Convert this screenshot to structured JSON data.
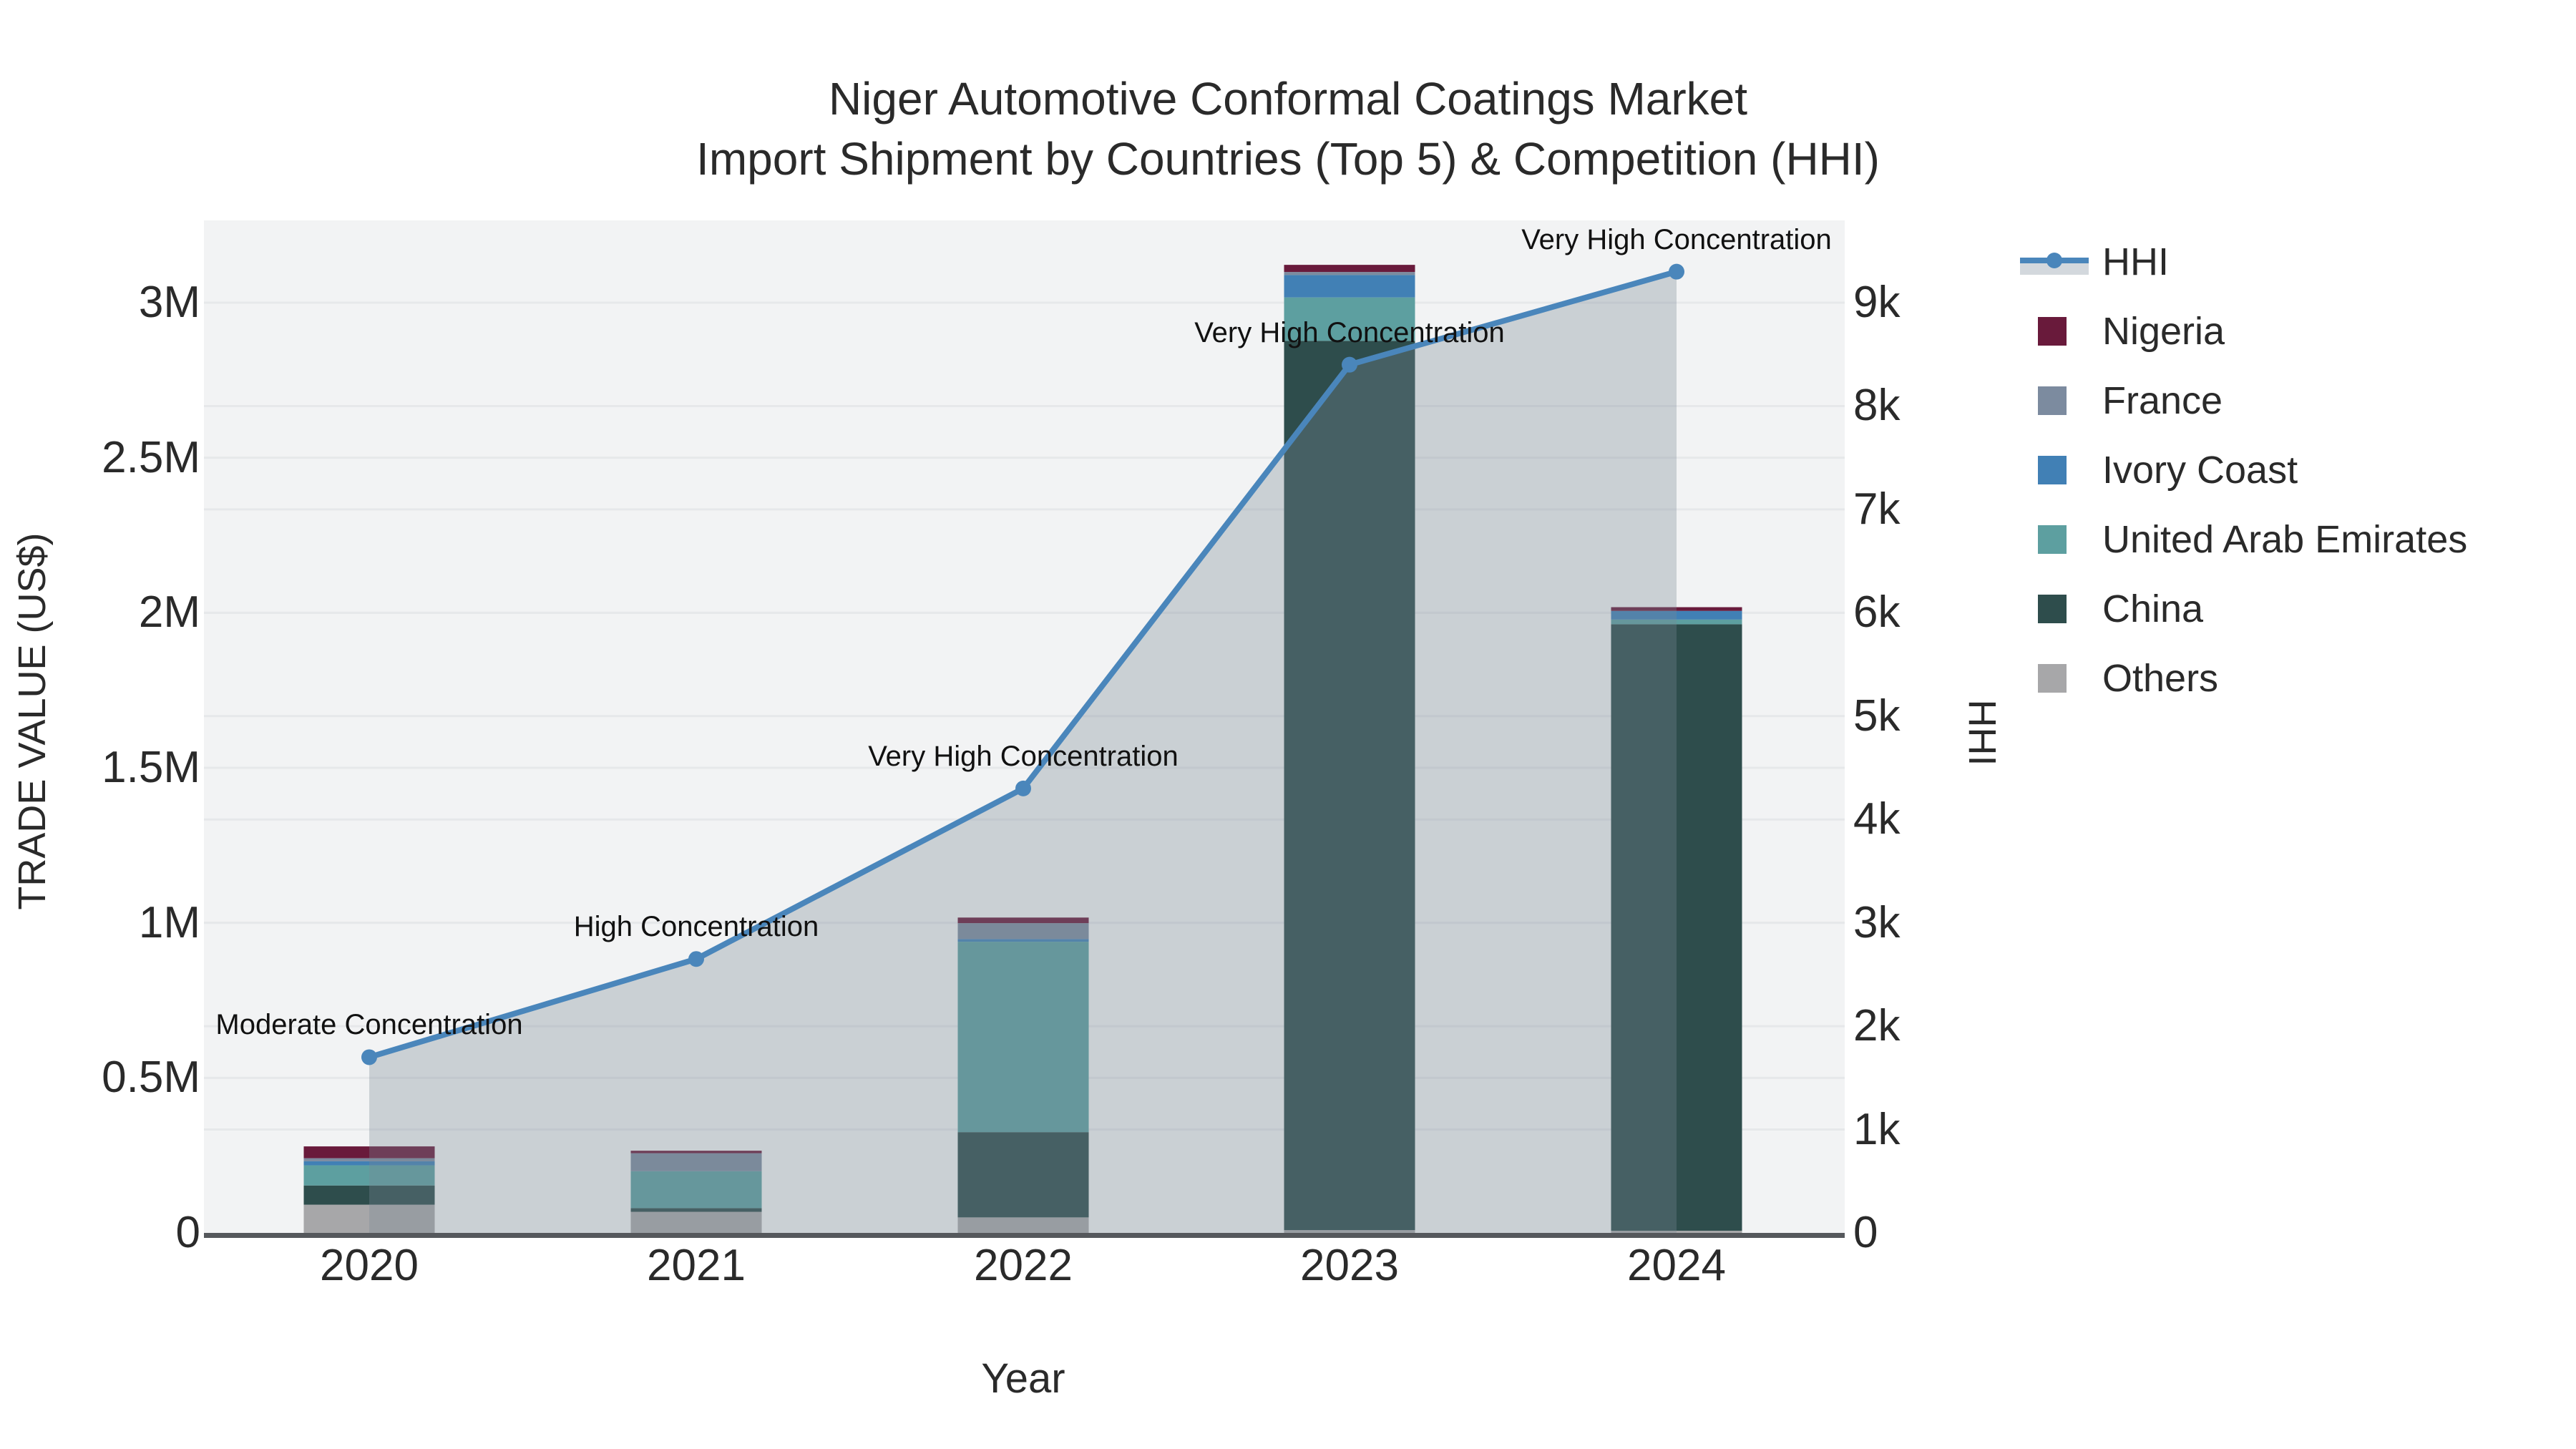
{
  "title": {
    "line1": "Niger Automotive Conformal Coatings Market",
    "line2": "Import Shipment by Countries (Top 5) & Competition (HHI)"
  },
  "axes": {
    "x": {
      "title": "Year",
      "ticks": [
        "2020",
        "2021",
        "2022",
        "2023",
        "2024"
      ]
    },
    "y_left": {
      "title": "TRADE VALUE (US$)",
      "ticks": [
        {
          "label": "0",
          "value": 0
        },
        {
          "label": "0.5M",
          "value": 500000
        },
        {
          "label": "1M",
          "value": 1000000
        },
        {
          "label": "1.5M",
          "value": 1500000
        },
        {
          "label": "2M",
          "value": 2000000
        },
        {
          "label": "2.5M",
          "value": 2500000
        },
        {
          "label": "3M",
          "value": 3000000
        }
      ]
    },
    "y_right": {
      "title": "HHI",
      "ticks": [
        {
          "label": "0",
          "value": 0
        },
        {
          "label": "1k",
          "value": 1000
        },
        {
          "label": "2k",
          "value": 2000
        },
        {
          "label": "3k",
          "value": 3000
        },
        {
          "label": "4k",
          "value": 4000
        },
        {
          "label": "5k",
          "value": 5000
        },
        {
          "label": "6k",
          "value": 6000
        },
        {
          "label": "7k",
          "value": 7000
        },
        {
          "label": "8k",
          "value": 8000
        },
        {
          "label": "9k",
          "value": 9000
        }
      ]
    }
  },
  "legend": {
    "items": [
      {
        "label": "HHI",
        "swatch": "line",
        "color": "#4a86bb"
      },
      {
        "label": "Nigeria",
        "swatch": "square",
        "color": "#691a3b"
      },
      {
        "label": "France",
        "swatch": "square",
        "color": "#7c8b9f"
      },
      {
        "label": "Ivory Coast",
        "swatch": "square",
        "color": "#4180b5"
      },
      {
        "label": "United Arab Emirates",
        "swatch": "square",
        "color": "#5d9fa0"
      },
      {
        "label": "China",
        "swatch": "square",
        "color": "#2e4d4c"
      },
      {
        "label": "Others",
        "swatch": "square",
        "color": "#a7a7a9"
      }
    ]
  },
  "annotations": [
    {
      "year": "2020",
      "text": "Moderate Concentration"
    },
    {
      "year": "2021",
      "text": "High Concentration"
    },
    {
      "year": "2022",
      "text": "Very High Concentration"
    },
    {
      "year": "2023",
      "text": "Very High Concentration"
    },
    {
      "year": "2024",
      "text": "Very High Concentration"
    }
  ],
  "chart_data": {
    "type": "combo-stacked-bar-plus-line-area",
    "categories": [
      "2020",
      "2021",
      "2022",
      "2023",
      "2024"
    ],
    "bar_value_unit": "US$ trade value",
    "bar_stack_order_bottom_to_top": [
      "Others",
      "China",
      "United Arab Emirates",
      "Ivory Coast",
      "France",
      "Nigeria"
    ],
    "series": [
      {
        "name": "Others",
        "color": "#a7a7a9",
        "values": [
          91000,
          68000,
          50000,
          9000,
          7000
        ]
      },
      {
        "name": "China",
        "color": "#2e4d4c",
        "values": [
          62000,
          12000,
          275000,
          2868000,
          1956000
        ]
      },
      {
        "name": "United Arab Emirates",
        "color": "#5d9fa0",
        "values": [
          65000,
          119000,
          614000,
          140000,
          15000
        ]
      },
      {
        "name": "Ivory Coast",
        "color": "#4180b5",
        "values": [
          13000,
          0,
          9000,
          72000,
          28000
        ]
      },
      {
        "name": "France",
        "color": "#7c8b9f",
        "values": [
          10000,
          58000,
          51000,
          10000,
          0
        ]
      },
      {
        "name": "Nigeria",
        "color": "#691a3b",
        "values": [
          38000,
          8000,
          18000,
          23000,
          12000
        ]
      }
    ],
    "bar_totals": [
      279000,
      265000,
      1017000,
      3122000,
      2018000
    ],
    "line_series": {
      "name": "HHI",
      "color": "#4a86bb",
      "area_fill": "rgba(122,137,150,0.33)",
      "values": [
        1700,
        2650,
        4300,
        8400,
        9300
      ]
    },
    "xlabel": "Year",
    "ylabel_left": "TRADE VALUE (US$)",
    "ylabel_right": "HHI",
    "ylim_left": [
      0,
      3270000
    ],
    "ylim_right": [
      0,
      9800
    ],
    "grid": true,
    "legend_position": "right",
    "plot_bg": "#f2f3f4",
    "grid_color": "#e6e8ea",
    "axisline_color": "#55585c"
  }
}
